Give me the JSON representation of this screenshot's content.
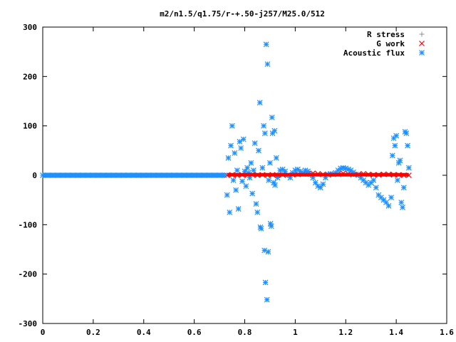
{
  "chart_data": {
    "type": "scatter",
    "title": "m2/n1.5/q1.75/r-+.50-j257/M25.0/512",
    "xlabel": "",
    "ylabel": "",
    "xlim": [
      0,
      1.6
    ],
    "ylim": [
      -300,
      300
    ],
    "x_ticks": [
      "0",
      "0.2",
      "0.4",
      "0.6",
      "0.8",
      "1",
      "1.2",
      "1.4",
      "1.6"
    ],
    "y_ticks": [
      "-300",
      "-200",
      "-100",
      "0",
      "100",
      "200",
      "300"
    ],
    "grid": false,
    "legend_position": "top-right",
    "series": [
      {
        "name": "R stress",
        "marker": "plus",
        "color": "#a0a0a0",
        "points": [
          [
            0.74,
            0
          ],
          [
            0.78,
            1
          ],
          [
            0.82,
            0
          ],
          [
            0.86,
            1
          ],
          [
            0.9,
            0
          ],
          [
            0.94,
            1
          ],
          [
            0.98,
            0
          ],
          [
            1.02,
            1
          ],
          [
            1.06,
            0
          ],
          [
            1.1,
            1
          ],
          [
            1.14,
            0
          ],
          [
            1.18,
            1
          ],
          [
            1.22,
            0
          ],
          [
            1.26,
            1
          ],
          [
            1.3,
            0
          ],
          [
            1.34,
            1
          ],
          [
            1.38,
            2
          ],
          [
            1.42,
            1
          ]
        ]
      },
      {
        "name": "G work",
        "marker": "cross",
        "color": "#ff0000",
        "points": [
          [
            0.73,
            0
          ],
          [
            0.75,
            1
          ],
          [
            0.77,
            0
          ],
          [
            0.79,
            1
          ],
          [
            0.81,
            0
          ],
          [
            0.83,
            1
          ],
          [
            0.85,
            0
          ],
          [
            0.87,
            1
          ],
          [
            0.89,
            0
          ],
          [
            0.91,
            1
          ],
          [
            0.93,
            0
          ],
          [
            0.95,
            1
          ],
          [
            0.97,
            0
          ],
          [
            0.99,
            1
          ],
          [
            1.01,
            2
          ],
          [
            1.03,
            3
          ],
          [
            1.05,
            3
          ],
          [
            1.07,
            4
          ],
          [
            1.09,
            3
          ],
          [
            1.11,
            2
          ],
          [
            1.13,
            1
          ],
          [
            1.15,
            2
          ],
          [
            1.17,
            3
          ],
          [
            1.19,
            4
          ],
          [
            1.21,
            3
          ],
          [
            1.23,
            2
          ],
          [
            1.25,
            2
          ],
          [
            1.27,
            3
          ],
          [
            1.29,
            2
          ],
          [
            1.31,
            1
          ],
          [
            1.33,
            1
          ],
          [
            1.35,
            2
          ],
          [
            1.37,
            2
          ],
          [
            1.39,
            1
          ],
          [
            1.41,
            1
          ],
          [
            1.43,
            0
          ],
          [
            1.45,
            0
          ]
        ]
      },
      {
        "name": "Acoustic flux",
        "marker": "star",
        "color": "#1e90ff",
        "points": [
          [
            0.0,
            0
          ],
          [
            0.02,
            0
          ],
          [
            0.04,
            0
          ],
          [
            0.06,
            0
          ],
          [
            0.08,
            0
          ],
          [
            0.1,
            0
          ],
          [
            0.12,
            0
          ],
          [
            0.14,
            0
          ],
          [
            0.16,
            0
          ],
          [
            0.18,
            0
          ],
          [
            0.2,
            0
          ],
          [
            0.22,
            0
          ],
          [
            0.24,
            0
          ],
          [
            0.26,
            0
          ],
          [
            0.28,
            0
          ],
          [
            0.3,
            0
          ],
          [
            0.32,
            0
          ],
          [
            0.34,
            0
          ],
          [
            0.36,
            0
          ],
          [
            0.38,
            0
          ],
          [
            0.4,
            0
          ],
          [
            0.42,
            0
          ],
          [
            0.44,
            0
          ],
          [
            0.46,
            0
          ],
          [
            0.48,
            0
          ],
          [
            0.5,
            0
          ],
          [
            0.52,
            0
          ],
          [
            0.54,
            0
          ],
          [
            0.56,
            0
          ],
          [
            0.58,
            0
          ],
          [
            0.6,
            0
          ],
          [
            0.62,
            0
          ],
          [
            0.64,
            0
          ],
          [
            0.66,
            0
          ],
          [
            0.68,
            0
          ],
          [
            0.7,
            0
          ],
          [
            0.72,
            0
          ],
          [
            0.73,
            -40
          ],
          [
            0.735,
            35
          ],
          [
            0.74,
            -75
          ],
          [
            0.745,
            60
          ],
          [
            0.75,
            100
          ],
          [
            0.755,
            -10
          ],
          [
            0.76,
            45
          ],
          [
            0.765,
            -30
          ],
          [
            0.77,
            10
          ],
          [
            0.775,
            -68
          ],
          [
            0.78,
            68
          ],
          [
            0.785,
            55
          ],
          [
            0.79,
            -12
          ],
          [
            0.795,
            73
          ],
          [
            0.8,
            8
          ],
          [
            0.805,
            -22
          ],
          [
            0.81,
            15
          ],
          [
            0.815,
            5
          ],
          [
            0.82,
            -5
          ],
          [
            0.825,
            25
          ],
          [
            0.83,
            -37
          ],
          [
            0.835,
            10
          ],
          [
            0.84,
            65
          ],
          [
            0.845,
            -58
          ],
          [
            0.85,
            -75
          ],
          [
            0.855,
            50
          ],
          [
            0.86,
            147
          ],
          [
            0.862,
            -105
          ],
          [
            0.865,
            -108
          ],
          [
            0.87,
            15
          ],
          [
            0.875,
            100
          ],
          [
            0.878,
            -152
          ],
          [
            0.88,
            85
          ],
          [
            0.882,
            -217
          ],
          [
            0.885,
            265
          ],
          [
            0.888,
            -252
          ],
          [
            0.89,
            225
          ],
          [
            0.893,
            -155
          ],
          [
            0.895,
            -10
          ],
          [
            0.9,
            25
          ],
          [
            0.902,
            -98
          ],
          [
            0.905,
            -103
          ],
          [
            0.908,
            117
          ],
          [
            0.91,
            85
          ],
          [
            0.915,
            -15
          ],
          [
            0.918,
            90
          ],
          [
            0.92,
            -20
          ],
          [
            0.925,
            35
          ],
          [
            0.93,
            -5
          ],
          [
            0.94,
            10
          ],
          [
            0.95,
            12
          ],
          [
            0.96,
            8
          ],
          [
            0.97,
            0
          ],
          [
            0.98,
            -5
          ],
          [
            0.99,
            5
          ],
          [
            1.0,
            10
          ],
          [
            1.01,
            12
          ],
          [
            1.02,
            8
          ],
          [
            1.03,
            5
          ],
          [
            1.04,
            10
          ],
          [
            1.05,
            8
          ],
          [
            1.06,
            2
          ],
          [
            1.07,
            -5
          ],
          [
            1.08,
            -15
          ],
          [
            1.09,
            -22
          ],
          [
            1.1,
            -25
          ],
          [
            1.11,
            -18
          ],
          [
            1.12,
            -5
          ],
          [
            1.13,
            2
          ],
          [
            1.14,
            3
          ],
          [
            1.15,
            2
          ],
          [
            1.16,
            5
          ],
          [
            1.17,
            10
          ],
          [
            1.18,
            14
          ],
          [
            1.19,
            15
          ],
          [
            1.2,
            14
          ],
          [
            1.21,
            12
          ],
          [
            1.22,
            10
          ],
          [
            1.23,
            6
          ],
          [
            1.24,
            2
          ],
          [
            1.25,
            0
          ],
          [
            1.26,
            -5
          ],
          [
            1.27,
            -10
          ],
          [
            1.28,
            -15
          ],
          [
            1.29,
            -20
          ],
          [
            1.3,
            -15
          ],
          [
            1.31,
            -10
          ],
          [
            1.32,
            -25
          ],
          [
            1.33,
            -40
          ],
          [
            1.34,
            -45
          ],
          [
            1.35,
            -50
          ],
          [
            1.36,
            -55
          ],
          [
            1.37,
            -62
          ],
          [
            1.38,
            -45
          ],
          [
            1.385,
            40
          ],
          [
            1.39,
            75
          ],
          [
            1.395,
            60
          ],
          [
            1.4,
            80
          ],
          [
            1.405,
            -10
          ],
          [
            1.41,
            25
          ],
          [
            1.415,
            30
          ],
          [
            1.42,
            -55
          ],
          [
            1.425,
            -65
          ],
          [
            1.43,
            -25
          ],
          [
            1.435,
            88
          ],
          [
            1.44,
            85
          ],
          [
            1.445,
            60
          ],
          [
            1.45,
            15
          ]
        ]
      }
    ]
  }
}
